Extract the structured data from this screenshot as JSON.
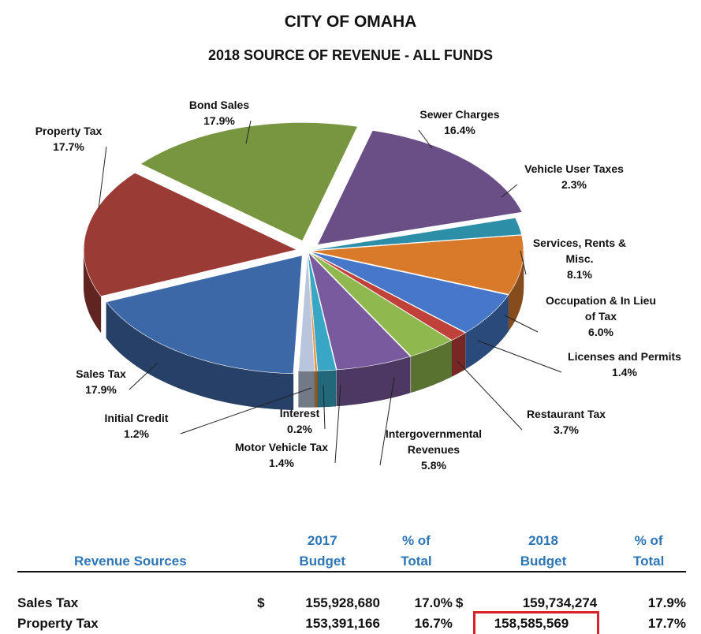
{
  "title": "CITY OF OMAHA",
  "subtitle": "2018 SOURCE OF REVENUE - ALL FUNDS",
  "chart_data": {
    "type": "pie",
    "slices": [
      {
        "label": "Sewer Charges",
        "value": 16.4,
        "value_label": "16.4%",
        "color": "#6a4f87"
      },
      {
        "label": "Vehicle User Taxes",
        "value": 2.3,
        "value_label": "2.3%",
        "color": "#2d8ea8"
      },
      {
        "label": "Services, Rents & Misc.",
        "value": 8.1,
        "value_label": "8.1%",
        "color": "#d97a2b"
      },
      {
        "label": "Occupation & In Lieu of Tax",
        "value": 6.0,
        "value_label": "6.0%",
        "color": "#4677c8"
      },
      {
        "label": "Licenses and Permits",
        "value": 1.4,
        "value_label": "1.4%",
        "color": "#c0403a"
      },
      {
        "label": "Restaurant Tax",
        "value": 3.7,
        "value_label": "3.7%",
        "color": "#8fb84e"
      },
      {
        "label": "Intergovernmental Revenues",
        "value": 5.8,
        "value_label": "5.8%",
        "color": "#7a5a9e"
      },
      {
        "label": "Motor Vehicle Tax",
        "value": 1.4,
        "value_label": "1.4%",
        "color": "#38a6c4"
      },
      {
        "label": "Interest",
        "value": 0.2,
        "value_label": "0.2%",
        "color": "#e8913a"
      },
      {
        "label": "Initial Credit",
        "value": 1.2,
        "value_label": "1.2%",
        "color": "#b8c5dc"
      },
      {
        "label": "Sales Tax",
        "value": 17.9,
        "value_label": "17.9%",
        "color": "#3d68a8"
      },
      {
        "label": "Property Tax",
        "value": 17.7,
        "value_label": "17.7%",
        "color": "#9b3b36"
      },
      {
        "label": "Bond Sales",
        "value": 17.9,
        "value_label": "17.9%",
        "color": "#77963f"
      }
    ]
  },
  "table": {
    "col_source": "Revenue Sources",
    "col_2017_top": "2017",
    "col_2017_bottom": "Budget",
    "col_pct1_top": "% of",
    "col_pct1_bottom": "Total",
    "col_2018_top": "2018",
    "col_2018_bottom": "Budget",
    "col_pct2_top": "% of",
    "col_pct2_bottom": "Total",
    "rows": [
      {
        "source": "Sales Tax",
        "cur1": "$",
        "b2017": "155,928,680",
        "p2017": "17.0%",
        "cur2": "$",
        "b2018": "159,734,274",
        "p2018": "17.9%"
      },
      {
        "source": "Property Tax",
        "cur1": "",
        "b2017": "153,391,166",
        "p2017": "16.7%",
        "cur2": "",
        "b2018": "158,585,569",
        "p2018": "17.7%"
      }
    ]
  }
}
